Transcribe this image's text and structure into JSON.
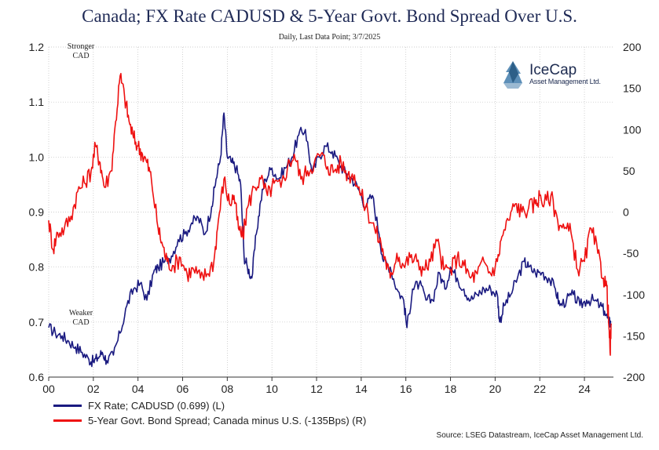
{
  "title": "Canada; FX Rate CADUSD & 5-Year Govt. Bond Spread Over U.S.",
  "subtitle": "Daily, Last Data Point; 3/7/2025",
  "source": "Source: LSEG Datastream, IceCap Asset Management Ltd.",
  "logo": {
    "name": "IceCap",
    "tagline": "Asset Management Ltd."
  },
  "annotations": {
    "stronger": [
      "Stronger",
      "CAD"
    ],
    "weaker": [
      "Weaker",
      "CAD"
    ]
  },
  "legend": [
    {
      "label": "FX Rate; CADUSD (0.699) (L)",
      "color": "#1a1a80"
    },
    {
      "label": "5-Year Govt. Bond Spread; Canada minus U.S. (-135Bps) (R)",
      "color": "#ee1111"
    }
  ],
  "chart_data": {
    "type": "line",
    "x_ticks": [
      "00",
      "02",
      "04",
      "06",
      "08",
      "10",
      "12",
      "14",
      "16",
      "18",
      "20",
      "22",
      "24"
    ],
    "x_tick_years": [
      2000,
      2002,
      2004,
      2006,
      2008,
      2010,
      2012,
      2014,
      2016,
      2018,
      2020,
      2022,
      2024
    ],
    "xlim": [
      2000.0,
      2025.3
    ],
    "y_left": {
      "ticks": [
        "0.6",
        "0.7",
        "0.8",
        "0.9",
        "1.0",
        "1.1",
        "1.2"
      ],
      "ylim": [
        0.6,
        1.2
      ]
    },
    "y_right": {
      "ticks": [
        "-200",
        "-150",
        "-100",
        "-50",
        "0",
        "50",
        "100",
        "150",
        "200"
      ],
      "ylim": [
        -200,
        200
      ]
    },
    "grid": true,
    "legend_position": "bottom-left",
    "series": [
      {
        "name": "FX Rate; CADUSD (0.699) (L)",
        "axis": "left",
        "color": "#1a1a80",
        "x": [
          2000.0,
          2000.3,
          2000.6,
          2000.9,
          2001.2,
          2001.5,
          2001.8,
          2002.0,
          2002.2,
          2002.4,
          2002.6,
          2002.9,
          2003.2,
          2003.5,
          2003.8,
          2004.1,
          2004.4,
          2004.7,
          2004.9,
          2005.2,
          2005.5,
          2005.8,
          2006.1,
          2006.4,
          2006.7,
          2007.0,
          2007.3,
          2007.5,
          2007.7,
          2007.85,
          2008.0,
          2008.2,
          2008.4,
          2008.6,
          2008.75,
          2008.9,
          2009.1,
          2009.3,
          2009.5,
          2009.7,
          2010.0,
          2010.3,
          2010.6,
          2010.9,
          2011.2,
          2011.5,
          2011.8,
          2012.1,
          2012.4,
          2012.7,
          2013.0,
          2013.3,
          2013.6,
          2013.9,
          2014.2,
          2014.5,
          2014.8,
          2015.0,
          2015.3,
          2015.6,
          2015.9,
          2016.05,
          2016.3,
          2016.6,
          2016.9,
          2017.2,
          2017.5,
          2017.75,
          2018.0,
          2018.3,
          2018.6,
          2018.9,
          2019.2,
          2019.5,
          2019.8,
          2020.1,
          2020.2,
          2020.4,
          2020.7,
          2021.0,
          2021.3,
          2021.5,
          2021.8,
          2022.1,
          2022.4,
          2022.7,
          2022.9,
          2023.2,
          2023.5,
          2023.8,
          2024.1,
          2024.4,
          2024.7,
          2024.9,
          2025.1,
          2025.18
        ],
        "values": [
          0.69,
          0.68,
          0.675,
          0.665,
          0.655,
          0.645,
          0.632,
          0.628,
          0.635,
          0.645,
          0.63,
          0.64,
          0.68,
          0.73,
          0.76,
          0.77,
          0.74,
          0.79,
          0.8,
          0.81,
          0.82,
          0.85,
          0.86,
          0.88,
          0.89,
          0.86,
          0.91,
          0.96,
          1.0,
          1.08,
          1.0,
          0.99,
          0.98,
          0.95,
          0.82,
          0.8,
          0.78,
          0.86,
          0.92,
          0.96,
          0.98,
          0.96,
          0.98,
          1.0,
          1.04,
          1.05,
          0.97,
          1.0,
          1.02,
          1.01,
          0.99,
          0.97,
          0.96,
          0.94,
          0.91,
          0.93,
          0.86,
          0.81,
          0.8,
          0.76,
          0.74,
          0.69,
          0.76,
          0.77,
          0.74,
          0.74,
          0.79,
          0.76,
          0.8,
          0.78,
          0.76,
          0.74,
          0.75,
          0.76,
          0.76,
          0.75,
          0.7,
          0.73,
          0.75,
          0.78,
          0.81,
          0.8,
          0.79,
          0.79,
          0.78,
          0.76,
          0.73,
          0.74,
          0.75,
          0.73,
          0.74,
          0.74,
          0.73,
          0.72,
          0.7,
          0.699
        ]
      },
      {
        "name": "5-Year Govt. Bond Spread; Canada minus U.S. (-135Bps) (R)",
        "axis": "right",
        "color": "#ee1111",
        "x": [
          2000.0,
          2000.2,
          2000.4,
          2000.7,
          2001.0,
          2001.3,
          2001.6,
          2001.9,
          2002.1,
          2002.3,
          2002.5,
          2002.8,
          2003.0,
          2003.2,
          2003.4,
          2003.6,
          2003.8,
          2004.0,
          2004.2,
          2004.4,
          2004.6,
          2004.9,
          2005.1,
          2005.3,
          2005.6,
          2005.9,
          2006.2,
          2006.5,
          2006.8,
          2007.1,
          2007.4,
          2007.6,
          2007.85,
          2008.1,
          2008.3,
          2008.5,
          2008.7,
          2008.9,
          2009.2,
          2009.5,
          2009.8,
          2010.1,
          2010.4,
          2010.7,
          2011.0,
          2011.3,
          2011.6,
          2011.9,
          2012.2,
          2012.5,
          2012.8,
          2013.1,
          2013.4,
          2013.7,
          2014.0,
          2014.3,
          2014.6,
          2014.9,
          2015.1,
          2015.3,
          2015.6,
          2015.9,
          2016.2,
          2016.5,
          2016.8,
          2017.1,
          2017.4,
          2017.7,
          2018.0,
          2018.3,
          2018.6,
          2018.9,
          2019.2,
          2019.5,
          2019.8,
          2020.1,
          2020.3,
          2020.6,
          2020.9,
          2021.2,
          2021.5,
          2021.8,
          2022.0,
          2022.2,
          2022.5,
          2022.8,
          2023.1,
          2023.4,
          2023.7,
          2024.0,
          2024.3,
          2024.6,
          2024.85,
          2025.0,
          2025.1,
          2025.15,
          2025.2
        ],
        "values": [
          -10,
          -45,
          -25,
          -20,
          -5,
          25,
          35,
          50,
          80,
          60,
          30,
          50,
          110,
          165,
          140,
          110,
          90,
          80,
          70,
          60,
          40,
          -20,
          -40,
          -60,
          -65,
          -55,
          -75,
          -70,
          -80,
          -75,
          -60,
          -10,
          40,
          10,
          20,
          -20,
          -30,
          5,
          30,
          40,
          20,
          35,
          30,
          55,
          70,
          40,
          50,
          60,
          70,
          55,
          50,
          60,
          45,
          45,
          20,
          0,
          -20,
          -40,
          -60,
          -80,
          -50,
          -65,
          -55,
          -60,
          -70,
          -60,
          -35,
          -70,
          -70,
          -55,
          -65,
          -80,
          -75,
          -60,
          -75,
          -60,
          -30,
          -10,
          10,
          0,
          5,
          10,
          20,
          10,
          20,
          -10,
          -20,
          -25,
          -70,
          -60,
          -20,
          -50,
          -80,
          -90,
          -140,
          -170,
          -135
        ]
      }
    ]
  }
}
